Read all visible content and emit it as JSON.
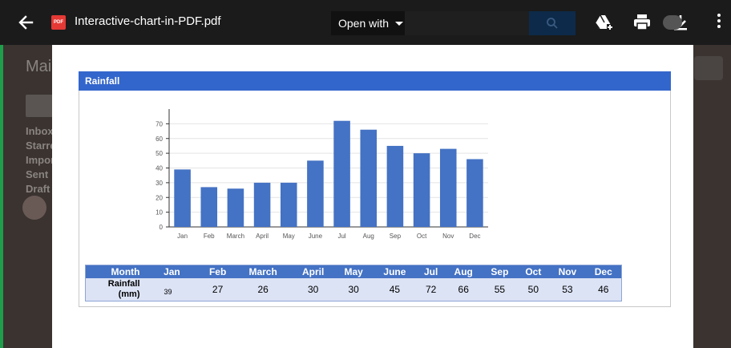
{
  "background": {
    "mail_label": "Mail",
    "nav_items": [
      "Inbox",
      "Starre",
      "Impor",
      "Sent",
      "Draft"
    ]
  },
  "viewer": {
    "file_name": "Interactive-chart-in-PDF.pdf",
    "pdf_badge": "PDF",
    "open_with_label": "Open with",
    "icons": [
      "back-arrow-icon",
      "add-to-drive-icon",
      "print-icon",
      "download-icon",
      "more-options-icon",
      "search-icon"
    ]
  },
  "document": {
    "header": "Rainfall",
    "table": {
      "month_header": "Month",
      "row_label_line1": "Rainfall",
      "row_label_line2": "(mm)",
      "months": [
        "Jan",
        "Feb",
        "March",
        "April",
        "May",
        "June",
        "Jul",
        "Aug",
        "Sep",
        "Oct",
        "Nov",
        "Dec"
      ],
      "values": [
        "39",
        "27",
        "26",
        "30",
        "30",
        "45",
        "72",
        "66",
        "55",
        "50",
        "53",
        "46"
      ]
    }
  },
  "chart_data": {
    "type": "bar",
    "categories": [
      "Jan",
      "Feb",
      "March",
      "April",
      "May",
      "June",
      "Jul",
      "Aug",
      "Sep",
      "Oct",
      "Nov",
      "Dec"
    ],
    "values": [
      39,
      27,
      26,
      30,
      30,
      45,
      72,
      66,
      55,
      50,
      53,
      46
    ],
    "y_ticks": [
      0,
      10,
      20,
      30,
      40,
      50,
      60,
      70
    ],
    "ylim": [
      0,
      80
    ],
    "grid": true,
    "bar_color": "#4472c4",
    "title": "",
    "xlabel": "",
    "ylabel": ""
  },
  "colors": {
    "header_blue": "#3366cc",
    "table_header": "#4472c4",
    "table_row": "#dce3f5",
    "topbar": "#1b1b1b"
  }
}
